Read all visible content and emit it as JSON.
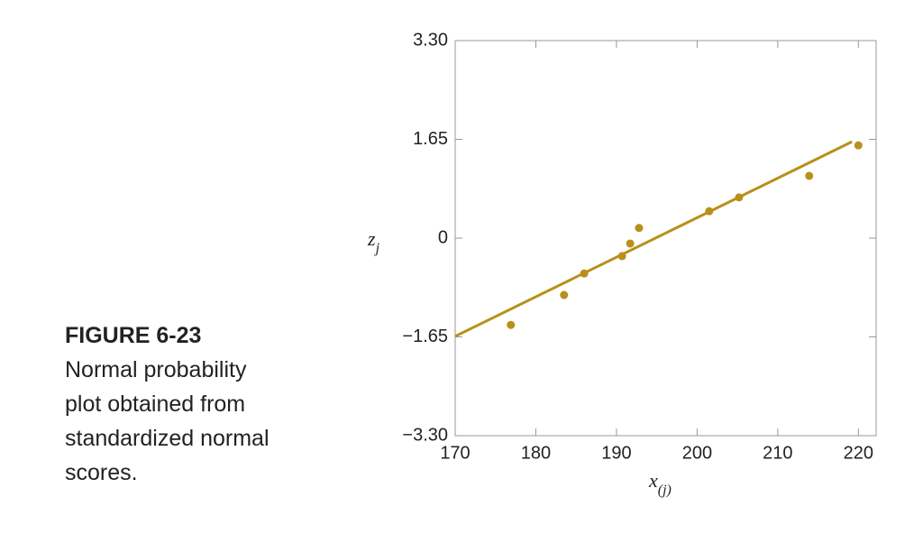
{
  "chart_data": {
    "type": "scatter",
    "caption_label": "FIGURE 6-23",
    "caption_lines": [
      "Normal probability",
      "plot obtained from",
      "standardized normal",
      "scores."
    ],
    "y_label": {
      "symbol": "z",
      "subscript": "j"
    },
    "x_label": {
      "symbol": "x",
      "subscript": "(j)"
    },
    "x": [
      176.9,
      183.5,
      186.0,
      190.7,
      191.7,
      192.8,
      201.5,
      205.2,
      213.9,
      220.0
    ],
    "values": [
      -1.45,
      -0.95,
      -0.59,
      -0.3,
      -0.09,
      0.17,
      0.45,
      0.68,
      1.04,
      1.55
    ],
    "fit_line": {
      "x": [
        170,
        219.2
      ],
      "values": [
        -1.64,
        1.61
      ]
    },
    "color": "#b8901a",
    "xlim": [
      170,
      222.2
    ],
    "ylim": [
      -3.3,
      3.3
    ],
    "xticks": [
      170,
      180,
      190,
      200,
      210,
      220
    ],
    "yticks": [
      {
        "value": -3.3,
        "label": "−3.30"
      },
      {
        "value": -1.65,
        "label": "−1.65"
      },
      0,
      1.65,
      {
        "value": 3.3,
        "label": "3.30"
      }
    ]
  }
}
